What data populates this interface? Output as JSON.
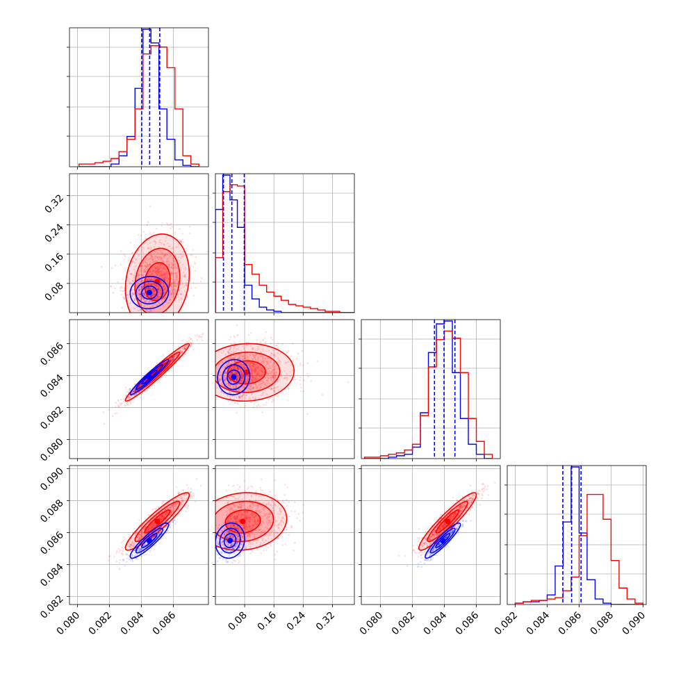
{
  "chart_data": {
    "type": "scatter",
    "title": "",
    "grid": true,
    "series_colors": {
      "blue": "#0000ff",
      "red": "#ff0000"
    },
    "parameter_ranges": {
      "p0": [
        0.0795,
        0.0882
      ],
      "p1": [
        0.0,
        0.38
      ],
      "p2": [
        0.0788,
        0.0875
      ],
      "p3": [
        0.0815,
        0.0902
      ]
    },
    "tick_labels": {
      "row1_y": [
        "0.08",
        "0.16",
        "0.24",
        "0.32"
      ],
      "row2_y": [
        "0.080",
        "0.082",
        "0.084",
        "0.086"
      ],
      "row3_y": [
        "0.082",
        "0.084",
        "0.086",
        "0.088",
        "0.090"
      ],
      "col0_x": [
        "0.080",
        "0.082",
        "0.084",
        "0.086"
      ],
      "col1_x": [
        "0.08",
        "0.16",
        "0.24",
        "0.32"
      ],
      "col2_x": [
        "0.080",
        "0.082",
        "0.084",
        "0.086"
      ],
      "col3_x": [
        "0.082",
        "0.084",
        "0.086",
        "0.088",
        "0.090"
      ]
    },
    "histograms": [
      {
        "param": "p0",
        "bin_edges": [
          0.0801,
          0.0806,
          0.0811,
          0.0816,
          0.0821,
          0.0826,
          0.0831,
          0.0836,
          0.0841,
          0.0846,
          0.0851,
          0.0856,
          0.0861,
          0.0866,
          0.0871,
          0.0876
        ],
        "blue_counts": [
          0,
          0,
          0,
          0,
          2,
          8,
          22,
          57,
          100,
          90,
          42,
          20,
          5,
          1,
          0
        ],
        "red_counts": [
          2,
          2,
          3,
          4,
          6,
          11,
          20,
          42,
          82,
          88,
          87,
          72,
          42,
          8,
          2
        ],
        "blue_quantiles": [
          0.08402,
          0.08452,
          0.08515
        ],
        "red_quantiles": [
          0.08402,
          0.08452,
          0.08515
        ]
      },
      {
        "param": "p1",
        "bin_edges": [
          0.0,
          0.02,
          0.04,
          0.06,
          0.08,
          0.1,
          0.12,
          0.14,
          0.16,
          0.18,
          0.2,
          0.22,
          0.24,
          0.26,
          0.28,
          0.3,
          0.32,
          0.34,
          0.36,
          0.38
        ],
        "blue_counts": [
          75,
          100,
          82,
          62,
          20,
          10,
          4,
          2,
          1,
          0,
          0,
          0,
          0,
          0,
          0,
          0,
          0,
          0,
          0
        ],
        "red_counts": [
          40,
          88,
          93,
          92,
          35,
          28,
          20,
          15,
          12,
          9,
          6,
          5,
          4,
          3,
          2,
          1,
          1,
          0,
          0
        ],
        "blue_quantiles": [
          0.022,
          0.045,
          0.079
        ],
        "red_quantiles": [
          0.022,
          0.045,
          0.079
        ]
      },
      {
        "param": "p2",
        "bin_edges": [
          0.079,
          0.0795,
          0.08,
          0.0805,
          0.081,
          0.0815,
          0.082,
          0.0825,
          0.083,
          0.0835,
          0.084,
          0.0845,
          0.085,
          0.0855,
          0.086,
          0.0865,
          0.087
        ],
        "blue_counts": [
          0,
          0,
          0,
          1,
          2,
          3,
          8,
          32,
          74,
          94,
          96,
          60,
          28,
          10,
          3,
          0
        ],
        "red_counts": [
          1,
          1,
          2,
          3,
          4,
          6,
          10,
          30,
          64,
          83,
          89,
          84,
          60,
          28,
          12,
          3
        ],
        "blue_quantiles": [
          0.08338,
          0.08398,
          0.08466
        ],
        "red_quantiles": [
          0.08338,
          0.08398,
          0.08466
        ]
      },
      {
        "param": "p3",
        "bin_edges": [
          0.082,
          0.0825,
          0.083,
          0.0835,
          0.084,
          0.0845,
          0.085,
          0.0855,
          0.086,
          0.0865,
          0.087,
          0.0875,
          0.088,
          0.0885,
          0.089,
          0.0895,
          0.09
        ],
        "blue_counts": [
          1,
          2,
          2,
          3,
          7,
          28,
          60,
          100,
          52,
          18,
          4,
          1,
          0,
          0,
          0,
          0
        ],
        "red_counts": [
          1,
          2,
          3,
          3,
          4,
          5,
          10,
          20,
          50,
          80,
          80,
          62,
          32,
          12,
          4,
          1
        ],
        "blue_quantiles": [
          0.08498,
          0.08553,
          0.08612
        ],
        "red_quantiles": [
          0.08498,
          0.08553,
          0.08612
        ]
      }
    ],
    "pairs": [
      {
        "x": "p0",
        "y": "p1",
        "blue": {
          "mean": [
            0.0845,
            0.055
          ],
          "sd": [
            0.0006,
            0.022
          ],
          "rho": 0.05
        },
        "red": {
          "mean": [
            0.085,
            0.085
          ],
          "sd": [
            0.001,
            0.065
          ],
          "rho": 0.15
        }
      },
      {
        "x": "p0",
        "y": "p2",
        "blue": {
          "mean": [
            0.0845,
            0.0839
          ],
          "sd": [
            0.0006,
            0.00055
          ],
          "rho": 0.96
        },
        "red": {
          "mean": [
            0.085,
            0.0842
          ],
          "sd": [
            0.001,
            0.0009
          ],
          "rho": 0.97
        }
      },
      {
        "x": "p1",
        "y": "p2",
        "blue": {
          "mean": [
            0.05,
            0.0839
          ],
          "sd": [
            0.022,
            0.00055
          ],
          "rho": 0.05
        },
        "red": {
          "mean": [
            0.085,
            0.0842
          ],
          "sd": [
            0.065,
            0.0009
          ],
          "rho": 0.05
        }
      },
      {
        "x": "p0",
        "y": "p3",
        "blue": {
          "mean": [
            0.0845,
            0.0855
          ],
          "sd": [
            0.0006,
            0.00055
          ],
          "rho": 0.9
        },
        "red": {
          "mean": [
            0.085,
            0.0867
          ],
          "sd": [
            0.001,
            0.0009
          ],
          "rho": 0.92
        }
      },
      {
        "x": "p1",
        "y": "p3",
        "blue": {
          "mean": [
            0.04,
            0.0855
          ],
          "sd": [
            0.02,
            0.00055
          ],
          "rho": 0.1
        },
        "red": {
          "mean": [
            0.075,
            0.0867
          ],
          "sd": [
            0.06,
            0.0009
          ],
          "rho": 0.1
        }
      },
      {
        "x": "p2",
        "y": "p3",
        "blue": {
          "mean": [
            0.0839,
            0.0855
          ],
          "sd": [
            0.00055,
            0.00055
          ],
          "rho": 0.92
        },
        "red": {
          "mean": [
            0.0842,
            0.0867
          ],
          "sd": [
            0.0009,
            0.0009
          ],
          "rho": 0.93
        }
      }
    ]
  }
}
